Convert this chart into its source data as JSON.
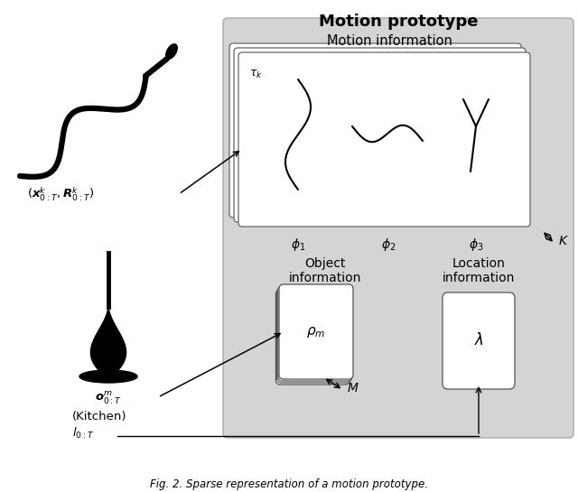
{
  "title": "Motion prototype",
  "fig_caption": "Fig. 2. Sparse representation of a motion prototype.",
  "bg_color": "#ffffff",
  "gray_box_color": "#d4d4d4",
  "white_box_color": "#ffffff",
  "text_color": "#000000",
  "motion_info_label": "Motion information",
  "object_info_label": "Object\ninformation",
  "location_info_label": "Location\ninformation",
  "tau_label": "$\\tau_k$",
  "phi1_label": "$\\phi_1$",
  "phi2_label": "$\\phi_2$",
  "phi3_label": "$\\phi_3$",
  "K_label": "$K$",
  "rho_label": "$\\rho_m$",
  "M_label": "$M$",
  "lambda_label": "$\\lambda$",
  "xR_label": "$(\\boldsymbol{x}^k_{0:T}, \\boldsymbol{R}^k_{0:T})$",
  "o_label": "$\\boldsymbol{o}^m_{0:T}$",
  "kitchen_label": "(Kitchen)",
  "l_label": "$l_{0:T}$"
}
